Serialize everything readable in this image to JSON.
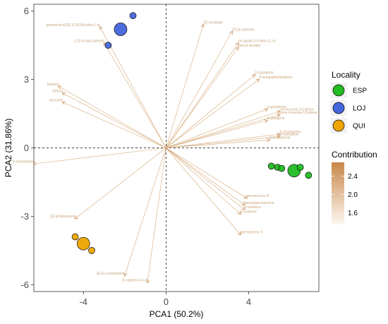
{
  "chart_data": {
    "type": "scatter",
    "subtype": "pca-biplot",
    "xlabel": "PCA1 (50.2%)",
    "ylabel": "PCA2 (31.86%)",
    "xlim": [
      -6.4,
      7.4
    ],
    "ylim": [
      -6.3,
      6.3
    ],
    "x_ticks": [
      -4,
      0,
      4
    ],
    "y_ticks": [
      -6,
      -3,
      0,
      3,
      6
    ],
    "reference_lines": {
      "x": 0,
      "y": 0,
      "style": "dashed"
    },
    "grid": false,
    "groups": [
      {
        "name": "ESP",
        "color": "#22bb22",
        "points": [
          {
            "x": 6.2,
            "y": -1.0,
            "size": "large"
          },
          {
            "x": 5.1,
            "y": -0.8,
            "size": "small"
          },
          {
            "x": 5.4,
            "y": -0.85,
            "size": "small"
          },
          {
            "x": 5.6,
            "y": -0.9,
            "size": "small"
          },
          {
            "x": 6.5,
            "y": -0.85,
            "size": "small"
          },
          {
            "x": 6.9,
            "y": -1.2,
            "size": "small"
          }
        ]
      },
      {
        "name": "LOJ",
        "color": "#4466dd",
        "points": [
          {
            "x": -2.2,
            "y": 5.2,
            "size": "large"
          },
          {
            "x": -1.6,
            "y": 5.8,
            "size": "small"
          },
          {
            "x": -2.8,
            "y": 4.5,
            "size": "small"
          }
        ]
      },
      {
        "name": "QUI",
        "color": "#eea500",
        "points": [
          {
            "x": -4.0,
            "y": -4.2,
            "size": "large"
          },
          {
            "x": -4.4,
            "y": -3.9,
            "size": "small"
          },
          {
            "x": -3.6,
            "y": -4.5,
            "size": "small"
          }
        ]
      }
    ],
    "variables": [
      {
        "label": "germacra-4(15),5,10(14)-trien-1-ol",
        "x": -3.2,
        "y": 5.3
      },
      {
        "label": "1,10-di-epi-cubenol",
        "x": -3.0,
        "y": 4.6
      },
      {
        "label": "(E)-nerolidol",
        "x": 1.8,
        "y": 5.4
      },
      {
        "label": "(E)-β-ocimene",
        "x": 3.2,
        "y": 5.1
      },
      {
        "label": "cis-guaia-3,9-dien-11-ol",
        "x": 3.5,
        "y": 4.6
      },
      {
        "label": "bornyl acetate",
        "x": 3.5,
        "y": 4.4
      },
      {
        "label": "β-cubebene",
        "x": 4.3,
        "y": 3.2
      },
      {
        "label": "δ-sesquiphellandrene",
        "x": 4.5,
        "y": 3.0
      },
      {
        "label": "α-gurjunene",
        "x": 4.9,
        "y": 1.7
      },
      {
        "label": "cis-muurola-3,5-diene",
        "x": 5.5,
        "y": 1.6
      },
      {
        "label": "trans-muurola-3,5-diene",
        "x": 5.5,
        "y": 1.45
      },
      {
        "label": "α-ylangene",
        "x": 4.9,
        "y": 1.2
      },
      {
        "label": "β-chamigrene",
        "x": 5.5,
        "y": 0.6
      },
      {
        "label": "α-humulene",
        "x": 5.5,
        "y": 0.5
      },
      {
        "label": "α-amorphene",
        "x": 5.0,
        "y": 0.35
      },
      {
        "label": "junenol",
        "x": -5.2,
        "y": 2.7
      },
      {
        "label": "elemol",
        "x": -5.0,
        "y": 2.4
      },
      {
        "label": "myrcene",
        "x": -5.0,
        "y": 2.0
      },
      {
        "label": "β-amorphene",
        "x": -6.4,
        "y": -0.7
      },
      {
        "label": "(E)-β-farnesene",
        "x": -4.4,
        "y": -3.1
      },
      {
        "label": "germacrene B",
        "x": 3.9,
        "y": -2.2
      },
      {
        "label": "bicyclogermacrene",
        "x": 3.8,
        "y": -2.5
      },
      {
        "label": "α-selinene",
        "x": 3.8,
        "y": -2.7
      },
      {
        "label": "β-selinene",
        "x": 3.6,
        "y": -2.9
      },
      {
        "label": "germacrene D",
        "x": 3.6,
        "y": -3.8
      },
      {
        "label": "(E,E)-α-farnesene",
        "x": -2.0,
        "y": -5.6
      },
      {
        "label": "β-copaen-4-α-ol",
        "x": -0.9,
        "y": -5.9
      }
    ],
    "legend": {
      "title": "Locality",
      "entries": [
        "ESP",
        "LOJ",
        "QUI"
      ],
      "position": "right"
    },
    "colorbar": {
      "title": "Contribution",
      "ticks": [
        2.4,
        2.0,
        1.6
      ],
      "color_low": "#fdf7f0",
      "color_high": "#c8874a",
      "position": "right"
    }
  }
}
